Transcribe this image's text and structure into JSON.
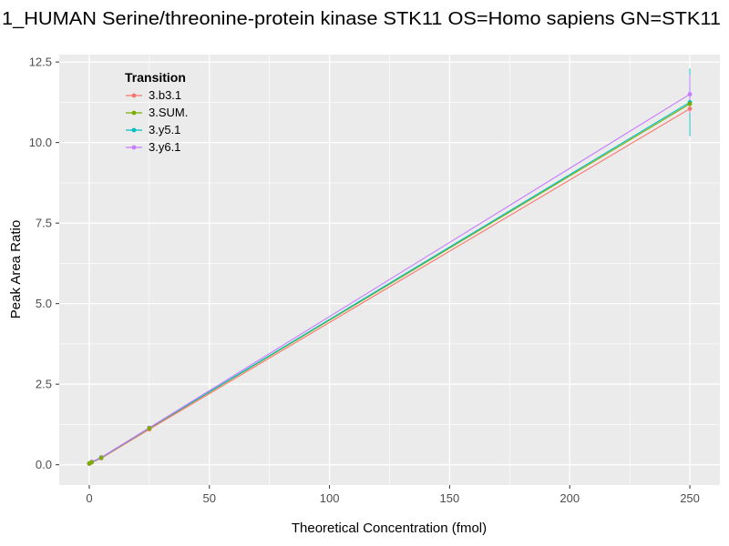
{
  "chart_data": {
    "type": "line",
    "title": "1_HUMAN Serine/threonine-protein kinase STK11 OS=Homo sapiens GN=STK11",
    "xlabel": "Theoretical Concentration (fmol)",
    "ylabel": "Peak Area Ratio",
    "legend_title": "Transition",
    "legend_position": "inside-top-left",
    "grid": true,
    "panel_bg": "#EBEBEB",
    "grid_color": "#FFFFFF",
    "tick_color": "#333333",
    "label_color": "#4D4D4D",
    "xlim": [
      -12.5,
      262.5
    ],
    "ylim": [
      -0.63,
      12.73
    ],
    "xticks": [
      0,
      50,
      100,
      150,
      200,
      250
    ],
    "xtick_labels": [
      "0",
      "50",
      "100",
      "150",
      "200",
      "250"
    ],
    "yticks": [
      0,
      2.5,
      5,
      7.5,
      10,
      12.5
    ],
    "ytick_labels": [
      "0.0",
      "2.5",
      "5.0",
      "7.5",
      "10.0",
      "12.5"
    ],
    "x": [
      0,
      1,
      5,
      25,
      250
    ],
    "series": [
      {
        "name": "3.b3.1",
        "color": "#F8766D",
        "y": [
          0.03,
          0.07,
          0.2,
          1.1,
          11.05
        ],
        "yerr": [
          0,
          0,
          0,
          0.05,
          0.3
        ]
      },
      {
        "name": "3.SUM.",
        "color": "#7CAE00",
        "y": [
          0.04,
          0.08,
          0.22,
          1.13,
          11.2
        ],
        "yerr": [
          0,
          0,
          0,
          0.05,
          0.25
        ]
      },
      {
        "name": "3.y5.1",
        "color": "#00BFC4",
        "y": [
          0.04,
          0.08,
          0.22,
          1.14,
          11.25
        ],
        "yerr": [
          0,
          0,
          0,
          0.05,
          1.05
        ]
      },
      {
        "name": "3.y6.1",
        "color": "#C77CFF",
        "y": [
          0.04,
          0.09,
          0.23,
          1.15,
          11.5
        ],
        "yerr": [
          0,
          0,
          0,
          0.05,
          0.6
        ]
      }
    ]
  }
}
